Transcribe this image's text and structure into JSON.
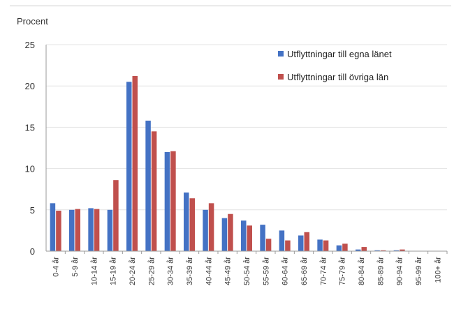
{
  "chart_data": {
    "type": "bar",
    "ylabel": "Procent",
    "xlabel": "",
    "ylim": [
      0,
      25
    ],
    "yticks": [
      "0",
      "5",
      "10",
      "15",
      "20",
      "25"
    ],
    "grid": true,
    "legend_position": "top-right",
    "categories": [
      "0-4 år",
      "5-9 år",
      "10-14 år",
      "15-19 år",
      "20-24 år",
      "25-29 år",
      "30-34 år",
      "35-39 år",
      "40-44 år",
      "45-49 år",
      "50-54 år",
      "55-59 år",
      "60-64 år",
      "65-69 år",
      "70-74 år",
      "75-79 år",
      "80-84 år",
      "85-89 år",
      "90-94 år",
      "95-99 år",
      "100+ år"
    ],
    "series": [
      {
        "name": "Utflyttningar till egna länet",
        "color": "#4472c4",
        "values": [
          5.8,
          5.0,
          5.2,
          5.0,
          20.5,
          15.8,
          12.0,
          7.1,
          5.0,
          4.0,
          3.7,
          3.2,
          2.5,
          1.9,
          1.4,
          0.7,
          0.2,
          0.1,
          0.1,
          0.0,
          0.0
        ]
      },
      {
        "name": "Utflyttningar till övriga län",
        "color": "#c0504d",
        "values": [
          4.9,
          5.1,
          5.1,
          8.6,
          21.2,
          14.5,
          12.1,
          6.4,
          5.8,
          4.5,
          3.1,
          1.5,
          1.3,
          2.3,
          1.3,
          0.9,
          0.5,
          0.1,
          0.2,
          0.0,
          0.0
        ]
      }
    ]
  }
}
